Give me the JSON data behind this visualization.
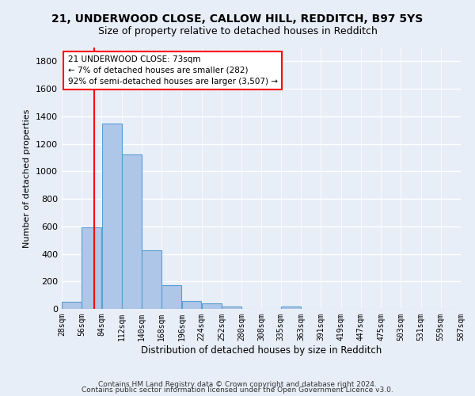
{
  "title1": "21, UNDERWOOD CLOSE, CALLOW HILL, REDDITCH, B97 5YS",
  "title2": "Size of property relative to detached houses in Redditch",
  "xlabel": "Distribution of detached houses by size in Redditch",
  "ylabel": "Number of detached properties",
  "footnote1": "Contains HM Land Registry data © Crown copyright and database right 2024.",
  "footnote2": "Contains public sector information licensed under the Open Government Licence v3.0.",
  "bin_edges": [
    28,
    56,
    84,
    112,
    140,
    168,
    196,
    224,
    252,
    280,
    308,
    335,
    363,
    391,
    419,
    447,
    475,
    503,
    531,
    559,
    587
  ],
  "bar_heights": [
    50,
    595,
    1345,
    1120,
    425,
    170,
    60,
    40,
    15,
    0,
    0,
    20,
    0,
    0,
    0,
    0,
    0,
    0,
    0,
    0
  ],
  "bar_color": "#aec6e8",
  "bar_edge_color": "#5a9fd4",
  "property_size": 73,
  "property_line_color": "red",
  "annotation_line1": "21 UNDERWOOD CLOSE: 73sqm",
  "annotation_line2": "← 7% of detached houses are smaller (282)",
  "annotation_line3": "92% of semi-detached houses are larger (3,507) →",
  "annotation_box_color": "white",
  "annotation_box_edge_color": "red",
  "ylim": [
    0,
    1900
  ],
  "yticks": [
    0,
    200,
    400,
    600,
    800,
    1000,
    1200,
    1400,
    1600,
    1800
  ],
  "background_color": "#e8eef8",
  "grid_color": "#ffffff",
  "title1_fontsize": 10,
  "title2_fontsize": 9,
  "ylabel_fontsize": 8,
  "xlabel_fontsize": 8.5,
  "tick_fontsize": 7,
  "footnote_fontsize": 6.5
}
